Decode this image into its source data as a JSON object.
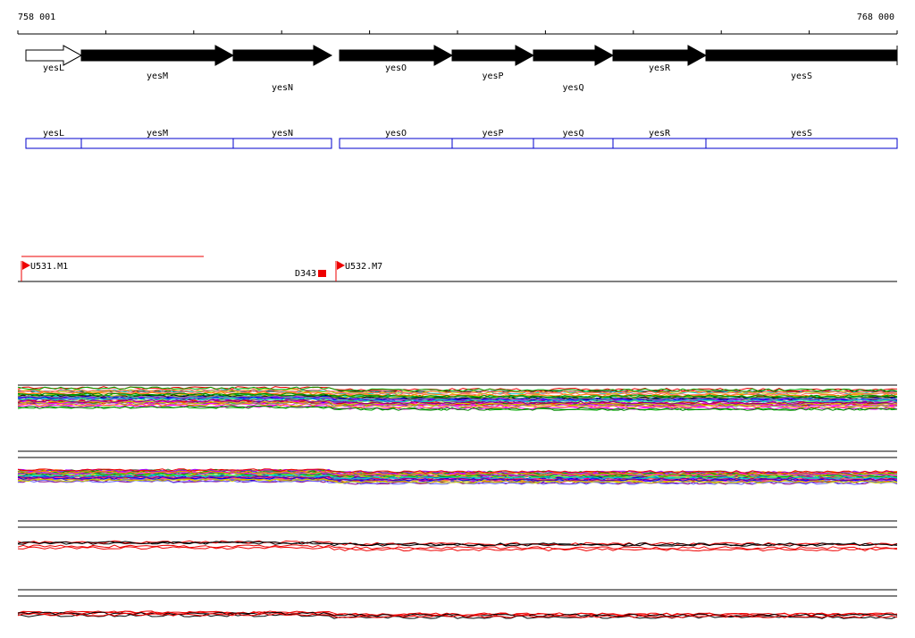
{
  "ruler": {
    "start": "758 001",
    "end": "768 000"
  },
  "genes": [
    {
      "name": "yesL"
    },
    {
      "name": "yesM"
    },
    {
      "name": "yesN"
    },
    {
      "name": "yesO"
    },
    {
      "name": "yesP"
    },
    {
      "name": "yesQ"
    },
    {
      "name": "yesR"
    },
    {
      "name": "yesS"
    }
  ],
  "features": [
    {
      "label": "U531.M1"
    },
    {
      "label": "D343"
    },
    {
      "label": "U532.M7"
    }
  ]
}
